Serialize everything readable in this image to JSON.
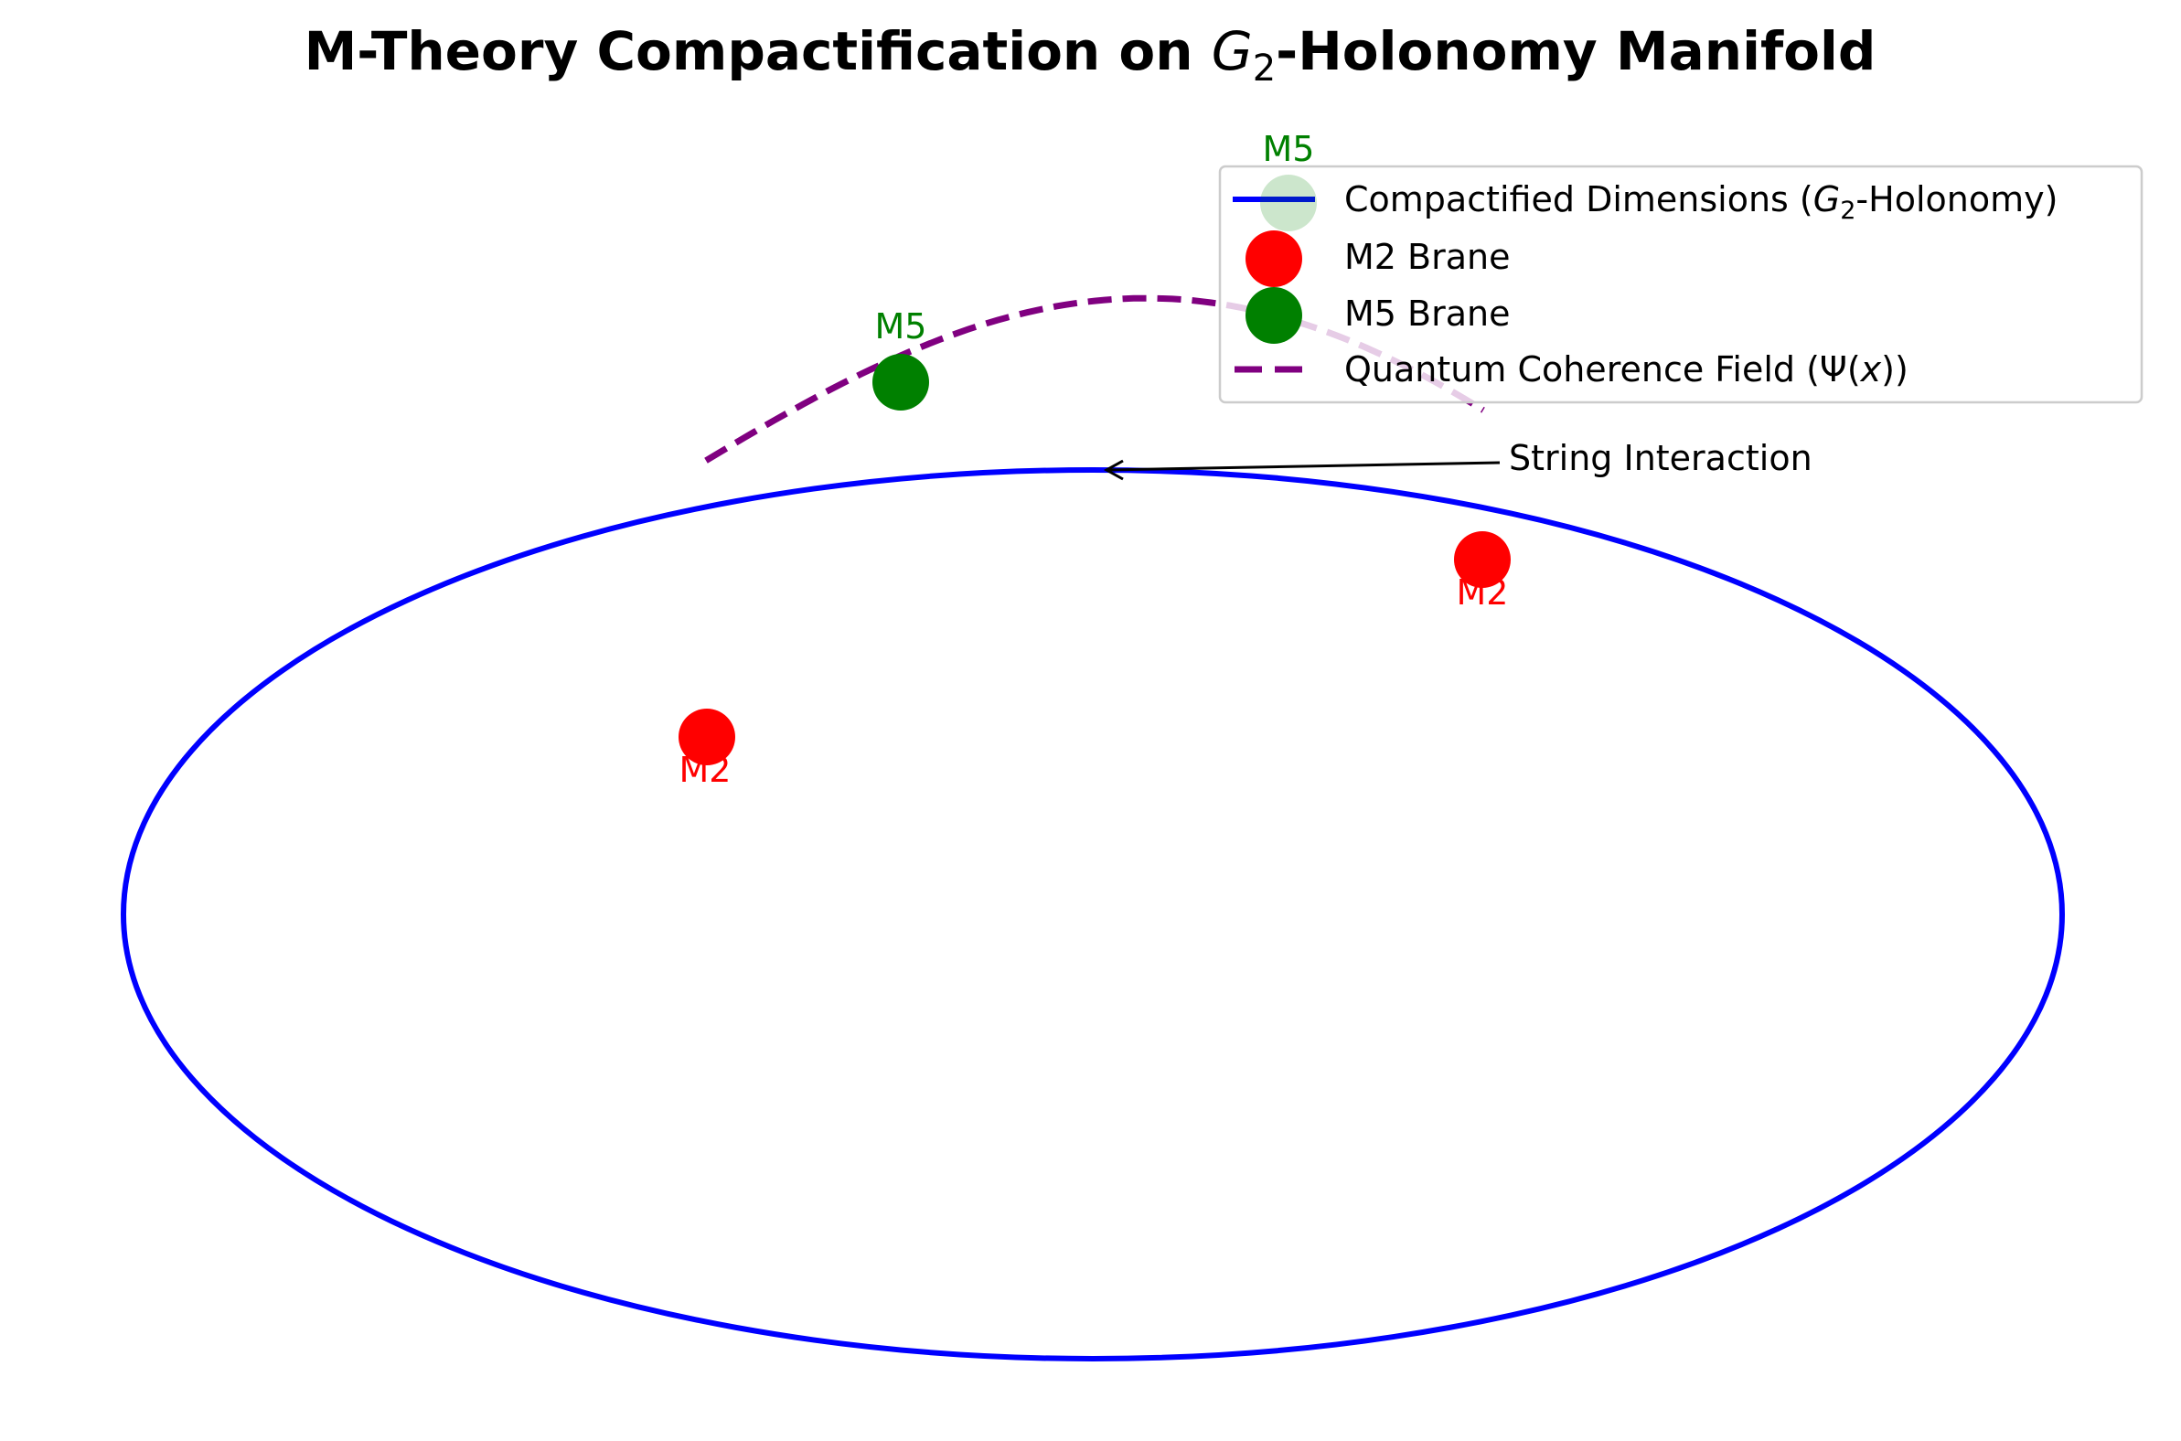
{
  "title": {
    "prefix": "M-Theory Compactification on ",
    "symbol": "G",
    "subscript": "2",
    "suffix": "-Holonomy Manifold"
  },
  "colors": {
    "manifold": "#0000ff",
    "m2": "#ff0000",
    "m5": "#008000",
    "field": "#800080",
    "annotation": "#000000",
    "background": "#ffffff"
  },
  "diagram": {
    "manifold": {
      "name": "Compactified Dimensions (G2-Holonomy)"
    },
    "branes": [
      {
        "type": "M2",
        "label": "M2",
        "color": "#ff0000"
      },
      {
        "type": "M2",
        "label": "M2",
        "color": "#ff0000"
      },
      {
        "type": "M5",
        "label": "M5",
        "color": "#008000"
      },
      {
        "type": "M5",
        "label": "M5",
        "color": "#008000",
        "faded": true
      }
    ],
    "field": {
      "name": "Quantum Coherence Field (Ψ(x))"
    },
    "annotation": {
      "text": "String Interaction"
    }
  },
  "legend": {
    "placement": "upper-right",
    "entries": [
      {
        "kind": "line",
        "color": "#0000ff",
        "prefix": "Compactified Dimensions (",
        "symbol": "G",
        "subscript": "2",
        "suffix": "-Holonomy)"
      },
      {
        "kind": "marker",
        "color": "#ff0000",
        "text": "M2 Brane"
      },
      {
        "kind": "marker",
        "color": "#008000",
        "text": "M5 Brane"
      },
      {
        "kind": "dashed",
        "color": "#800080",
        "prefix": "Quantum Coherence Field (Ψ(",
        "symbol": "x",
        "suffix": "))"
      }
    ]
  }
}
